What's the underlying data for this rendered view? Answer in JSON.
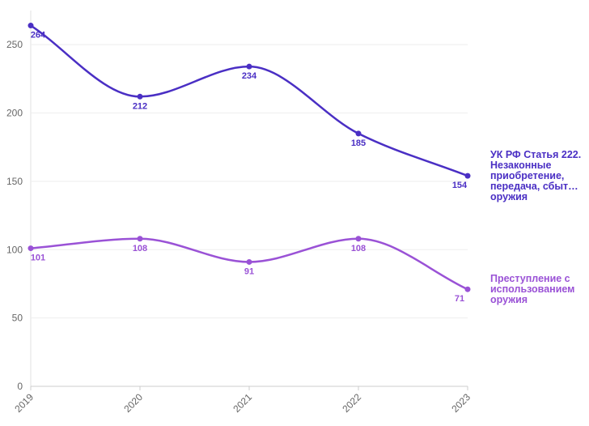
{
  "chart_data": {
    "type": "line",
    "title": "",
    "xlabel": "",
    "ylabel": "",
    "x": [
      "2019",
      "2020",
      "2021",
      "2022",
      "2023"
    ],
    "ylim": [
      0,
      275
    ],
    "yticks": [
      0,
      50,
      100,
      150,
      200,
      250
    ],
    "grid": "horizontal",
    "legend_placement": "right (labels at line ends)",
    "series": [
      {
        "name": "УК РФ Статья 222. Незаконные приобретение, передача, сбыт… оружия",
        "name_lines": [
          "УК РФ Статья 222.",
          "Незаконные",
          "приобретение,",
          "передача, сбыт…",
          "оружия"
        ],
        "color": "#4a2fc4",
        "values": [
          264,
          212,
          234,
          185,
          154
        ],
        "labels": [
          "264",
          "212",
          "234",
          "185",
          "154"
        ]
      },
      {
        "name": "Преступление с использованием оружия",
        "name_lines": [
          "Преступление с",
          "использованием",
          "оружия"
        ],
        "color": "#9a52d6",
        "values": [
          101,
          108,
          91,
          108,
          71
        ],
        "labels": [
          "101",
          "108",
          "91",
          "108",
          "71"
        ]
      }
    ]
  }
}
